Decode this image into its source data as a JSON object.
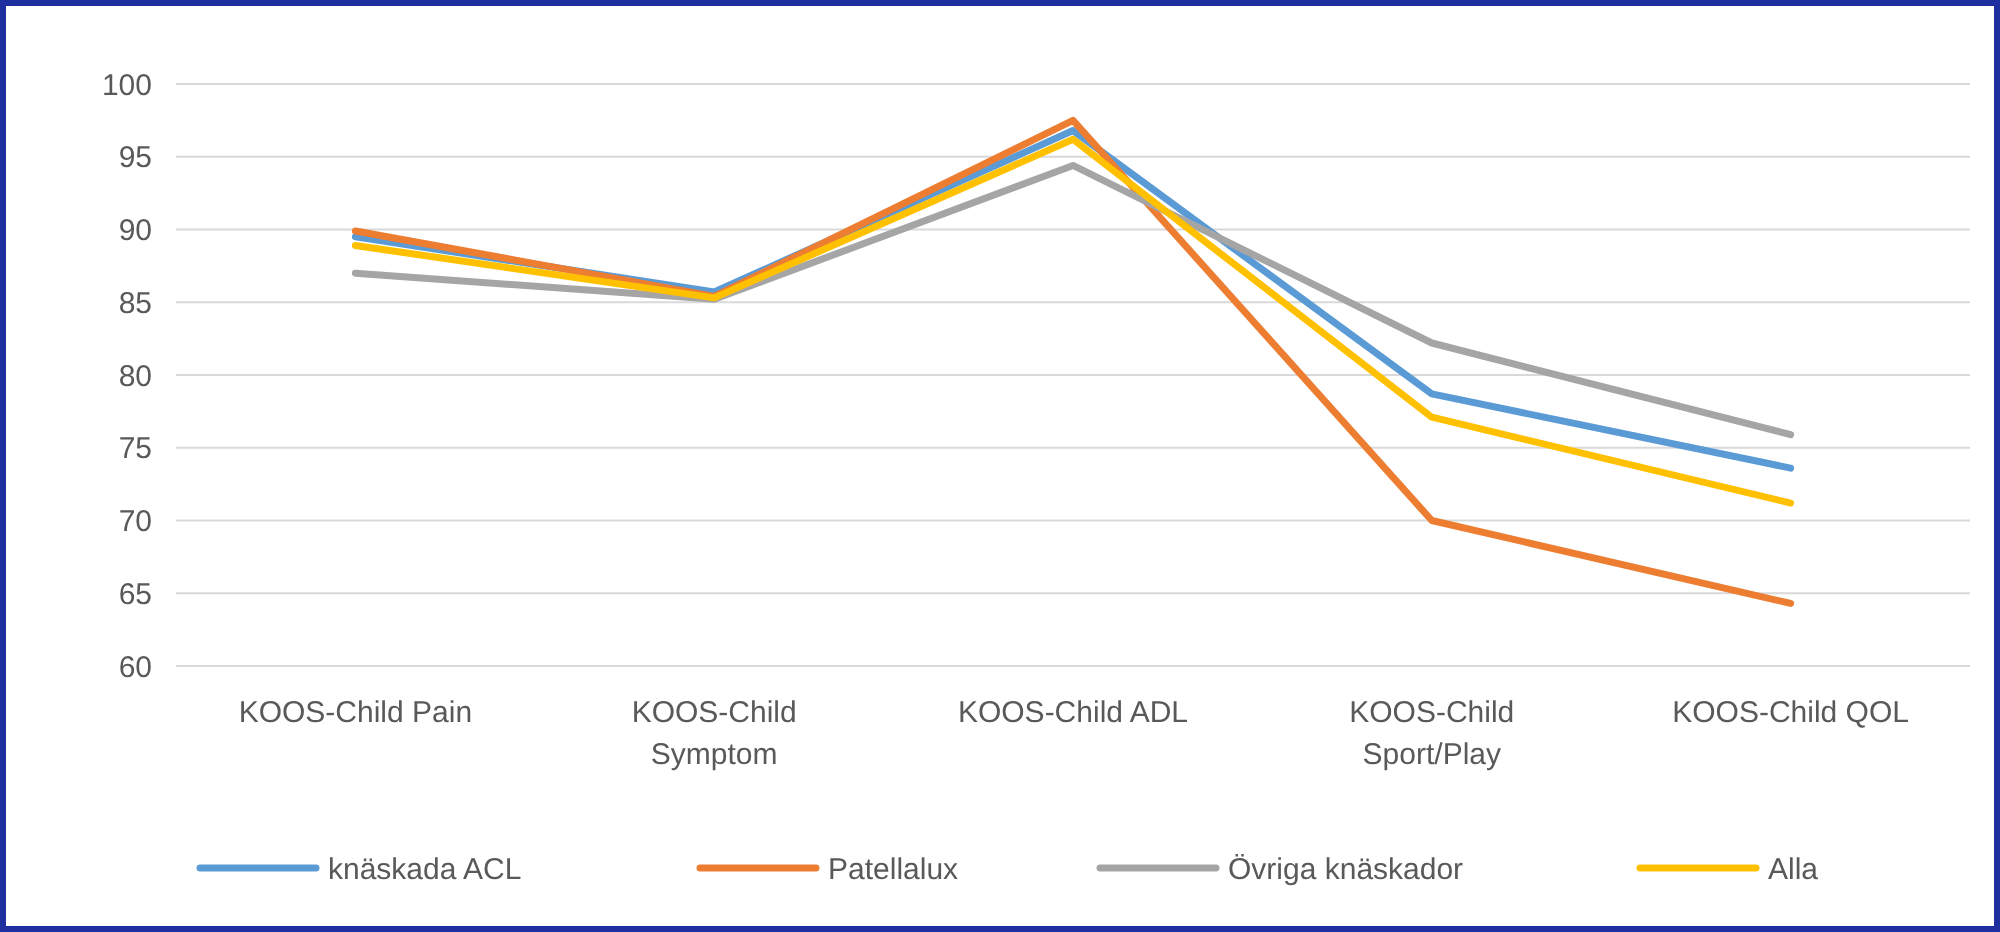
{
  "chart_data": {
    "type": "line",
    "categories": [
      "KOOS-Child Pain",
      "KOOS-Child Symptom",
      "KOOS-Child ADL",
      "KOOS-Child Sport/Play",
      "KOOS-Child QOL"
    ],
    "series": [
      {
        "name": "knäskada ACL",
        "color": "#5b9bd5",
        "values": [
          89.5,
          85.7,
          96.8,
          78.7,
          73.6
        ]
      },
      {
        "name": "Patellalux",
        "color": "#ed7d31",
        "values": [
          89.9,
          85.4,
          97.5,
          70.0,
          64.3
        ]
      },
      {
        "name": "Övriga knäskador",
        "color": "#a5a5a5",
        "values": [
          87.0,
          85.2,
          94.4,
          82.2,
          75.9
        ]
      },
      {
        "name": "Alla",
        "color": "#ffc000",
        "values": [
          88.9,
          85.3,
          96.2,
          77.1,
          71.2
        ]
      }
    ],
    "ylim": [
      60,
      100
    ],
    "yticks": [
      60,
      65,
      70,
      75,
      80,
      85,
      90,
      95,
      100
    ],
    "grid": "y",
    "legend": "bottom",
    "marker": "none",
    "line_style": "solid"
  }
}
